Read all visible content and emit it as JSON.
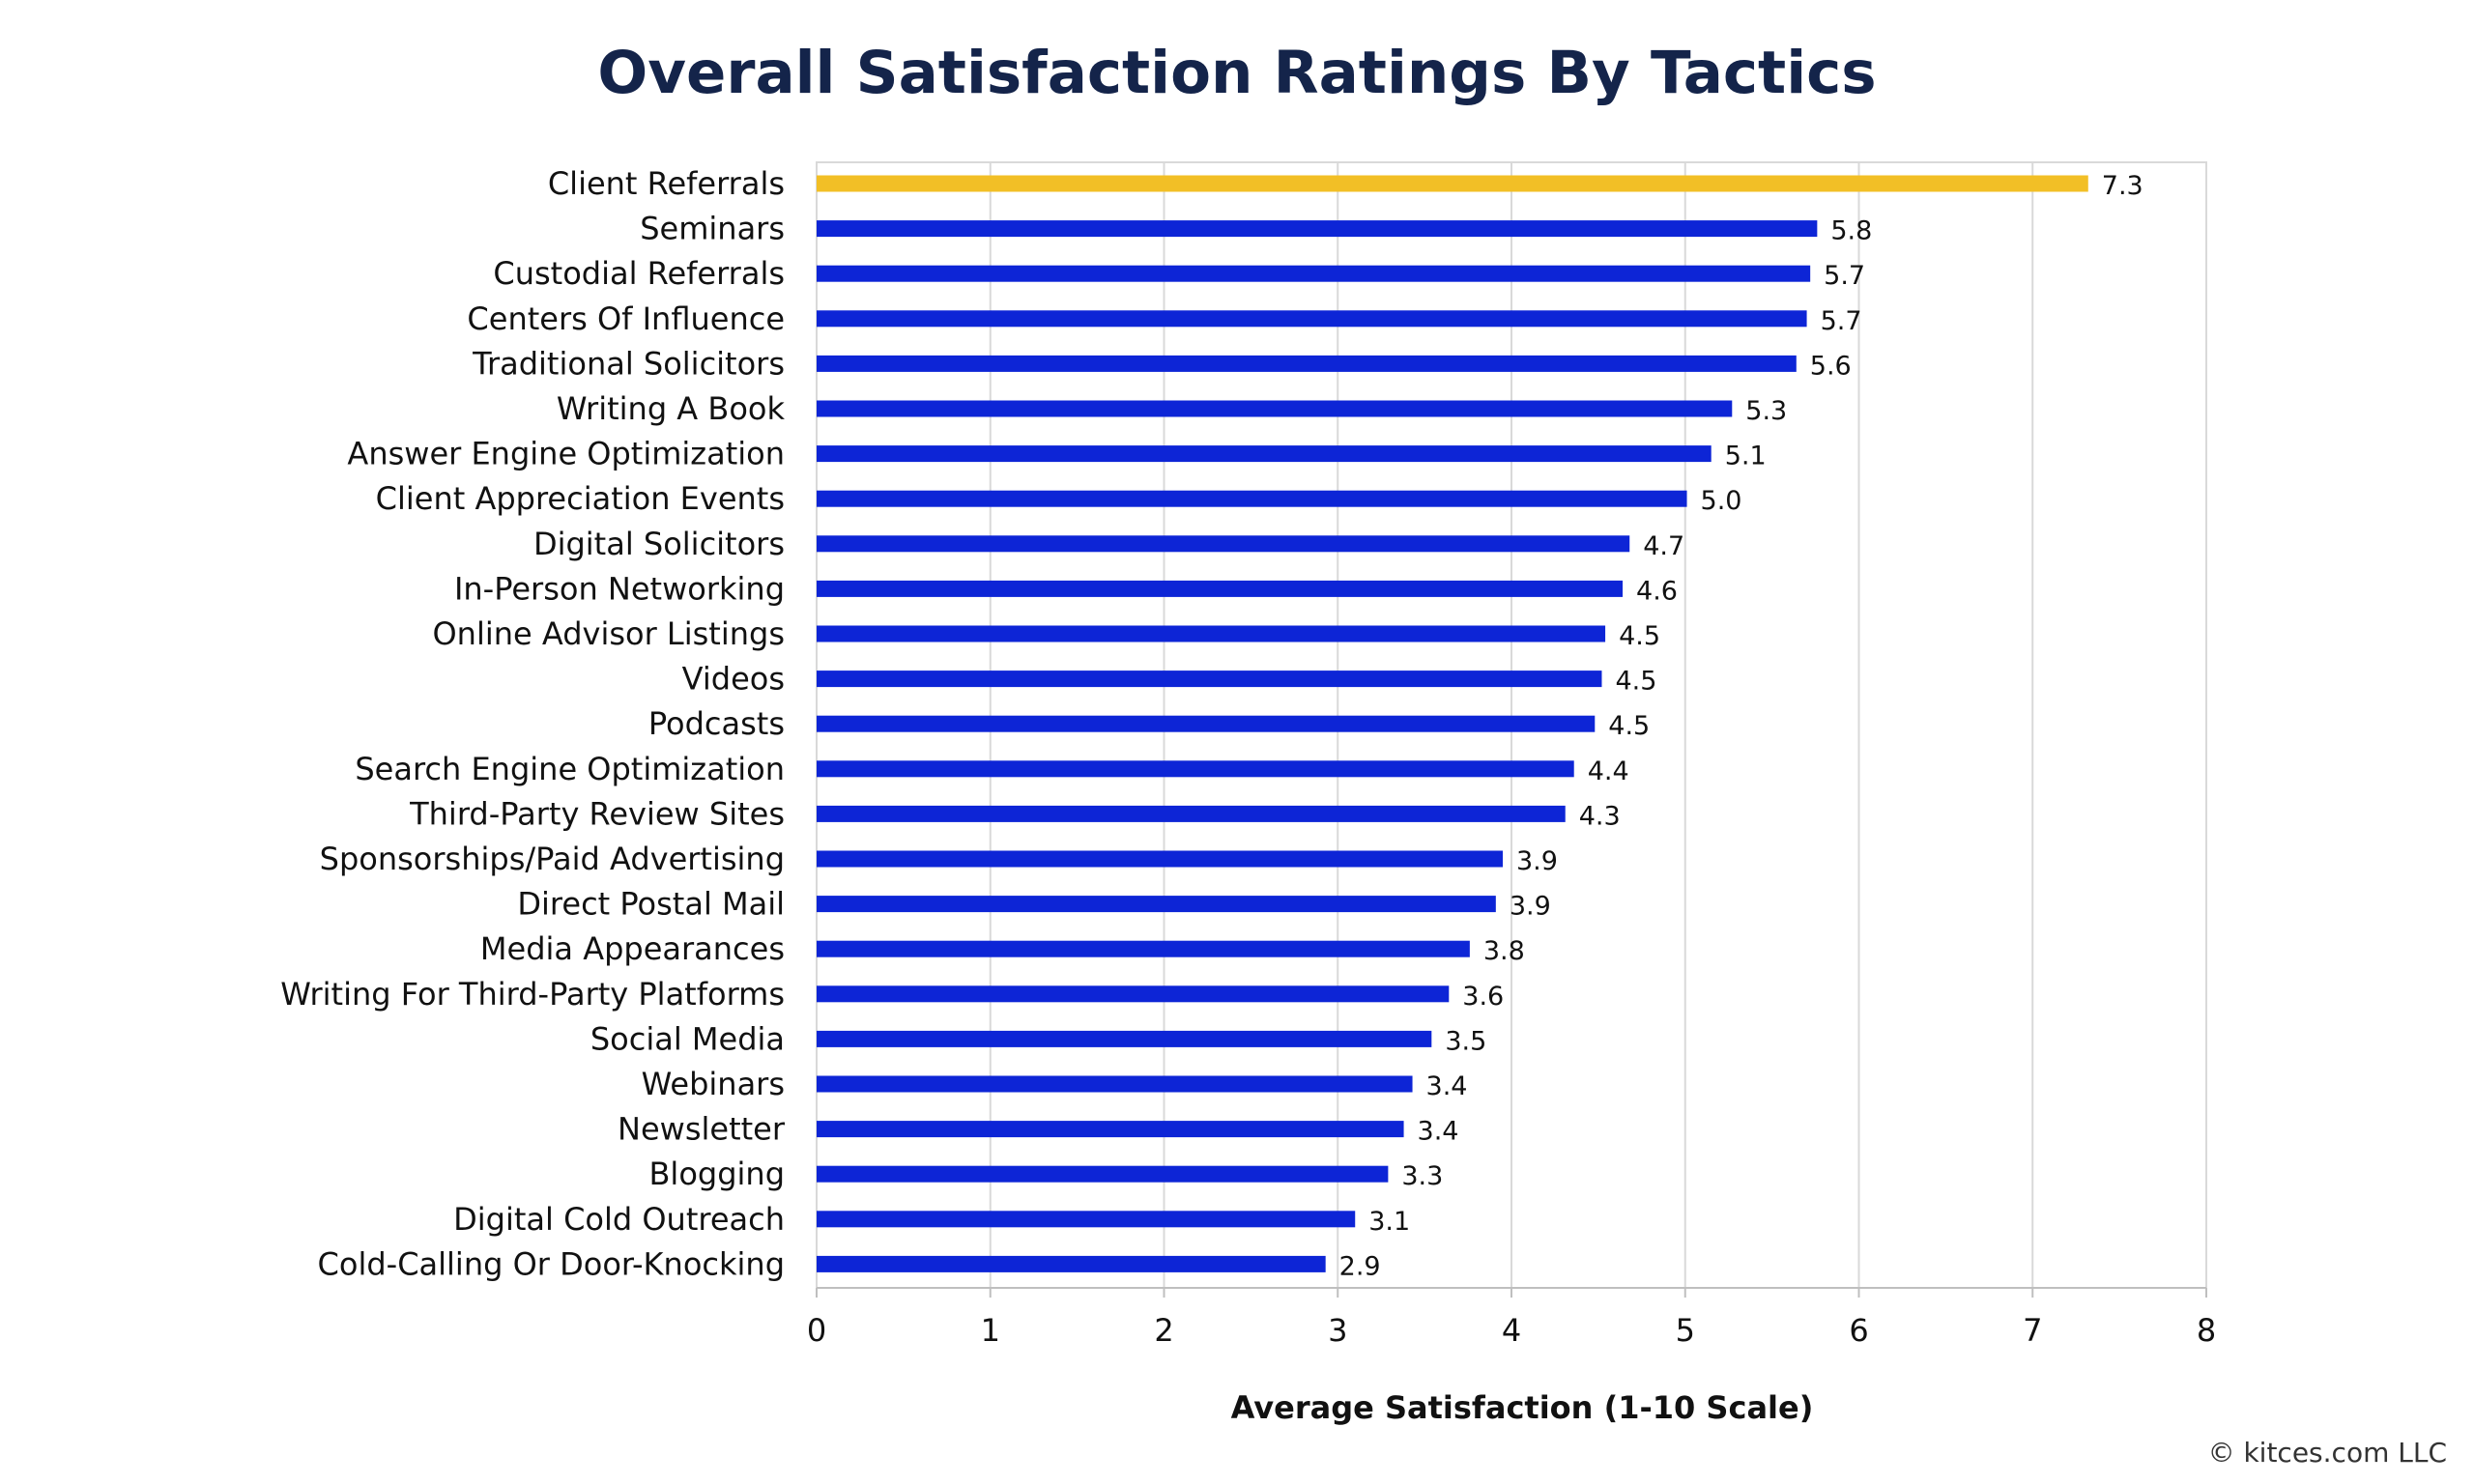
{
  "chart_data": {
    "type": "bar",
    "orientation": "horizontal",
    "title": "Overall Satisfaction Ratings By Tactics",
    "xlabel": "Average Satisfaction (1-10 Scale)",
    "ylabel": "",
    "xlim": [
      0,
      8
    ],
    "xticks": [
      0,
      1,
      2,
      3,
      4,
      5,
      6,
      7,
      8
    ],
    "grid": true,
    "highlight_color": "#f2bf26",
    "bar_color": "#0d25d6",
    "title_color": "#14244a",
    "categories": [
      "Client Referrals",
      "Seminars",
      "Custodial Referrals",
      "Centers Of Influence",
      "Traditional Solicitors",
      "Writing A Book",
      "Answer Engine Optimization",
      "Client Appreciation Events",
      "Digital Solicitors",
      "In-Person Networking",
      "Online Advisor Listings",
      "Videos",
      "Podcasts",
      "Search Engine Optimization",
      "Third-Party Review Sites",
      "Sponsorships/Paid Advertising",
      "Direct Postal Mail",
      "Media Appearances",
      "Writing For Third-Party Platforms",
      "Social Media",
      "Webinars",
      "Newsletter",
      "Blogging",
      "Digital Cold Outreach",
      "Cold-Calling Or Door-Knocking"
    ],
    "values": [
      7.32,
      5.76,
      5.72,
      5.7,
      5.64,
      5.27,
      5.15,
      5.01,
      4.68,
      4.64,
      4.54,
      4.52,
      4.48,
      4.36,
      4.31,
      3.95,
      3.91,
      3.76,
      3.64,
      3.54,
      3.43,
      3.38,
      3.29,
      3.1,
      2.93
    ],
    "value_labels": [
      "7.3",
      "5.8",
      "5.7",
      "5.7",
      "5.6",
      "5.3",
      "5.1",
      "5.0",
      "4.7",
      "4.6",
      "4.5",
      "4.5",
      "4.5",
      "4.4",
      "4.3",
      "3.9",
      "3.9",
      "3.8",
      "3.6",
      "3.5",
      "3.4",
      "3.4",
      "3.3",
      "3.1",
      "2.9"
    ]
  },
  "footer": {
    "copyright": "© kitces.com LLC"
  }
}
